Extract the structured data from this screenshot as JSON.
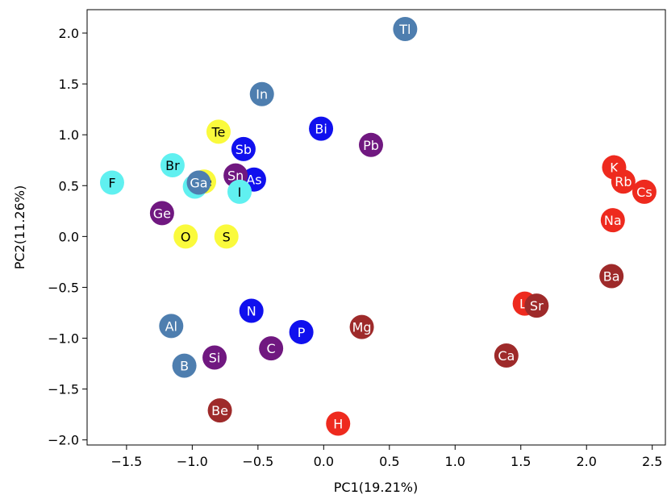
{
  "chart_data": {
    "type": "scatter",
    "title": "",
    "xlabel": "PC1(19.21%)",
    "ylabel": "PC2(11.26%)",
    "xlim": [
      -1.8,
      2.6
    ],
    "ylim": [
      -2.05,
      2.23
    ],
    "xticks": [
      -1.5,
      -1.0,
      -0.5,
      0.0,
      0.5,
      1.0,
      1.5,
      2.0,
      2.5
    ],
    "xtick_labels": [
      "−1.5",
      "−1.0",
      "−0.5",
      "0.0",
      "0.5",
      "1.0",
      "1.5",
      "2.0",
      "2.5"
    ],
    "yticks": [
      -2.0,
      -1.5,
      -1.0,
      -0.5,
      0.0,
      0.5,
      1.0,
      1.5,
      2.0
    ],
    "ytick_labels": [
      "−2.0",
      "−1.5",
      "−1.0",
      "−0.5",
      "0.0",
      "0.5",
      "1.0",
      "1.5",
      "2.0"
    ],
    "grid": false,
    "colors": {
      "steelblue": "#4E7EAF",
      "blue": "#1010EE",
      "purple": "#701880",
      "yellow": "#FAFA3C",
      "cyan": "#60F0F0",
      "red": "#EE2A1E",
      "brown": "#9E2A2A"
    },
    "points": [
      {
        "label": "Tl",
        "x": 0.62,
        "y": 2.04,
        "color": "steelblue"
      },
      {
        "label": "In",
        "x": -0.47,
        "y": 1.4,
        "color": "steelblue"
      },
      {
        "label": "Al",
        "x": -1.16,
        "y": -0.88,
        "color": "steelblue"
      },
      {
        "label": "B",
        "x": -1.06,
        "y": -1.27,
        "color": "steelblue"
      },
      {
        "label": "Bi",
        "x": -0.02,
        "y": 1.06,
        "color": "blue"
      },
      {
        "label": "Sb",
        "x": -0.61,
        "y": 0.86,
        "color": "blue"
      },
      {
        "label": "As",
        "x": -0.53,
        "y": 0.56,
        "color": "blue"
      },
      {
        "label": "N",
        "x": -0.55,
        "y": -0.73,
        "color": "blue"
      },
      {
        "label": "P",
        "x": -0.17,
        "y": -0.94,
        "color": "blue"
      },
      {
        "label": "Pb",
        "x": 0.36,
        "y": 0.9,
        "color": "purple"
      },
      {
        "label": "Sn",
        "x": -0.67,
        "y": 0.6,
        "color": "purple"
      },
      {
        "label": "Ge",
        "x": -1.23,
        "y": 0.23,
        "color": "purple"
      },
      {
        "label": "Si",
        "x": -0.83,
        "y": -1.19,
        "color": "purple"
      },
      {
        "label": "C",
        "x": -0.4,
        "y": -1.1,
        "color": "purple"
      },
      {
        "label": "Te",
        "x": -0.8,
        "y": 1.03,
        "color": "yellow"
      },
      {
        "label": "Se",
        "x": -0.91,
        "y": 0.54,
        "color": "yellow"
      },
      {
        "label": "O",
        "x": -1.05,
        "y": 0.0,
        "color": "yellow"
      },
      {
        "label": "S",
        "x": -0.74,
        "y": 0.0,
        "color": "yellow"
      },
      {
        "label": "F",
        "x": -1.61,
        "y": 0.53,
        "color": "cyan"
      },
      {
        "label": "Br",
        "x": -1.15,
        "y": 0.7,
        "color": "cyan"
      },
      {
        "label": "Cl",
        "x": -0.98,
        "y": 0.49,
        "color": "cyan"
      },
      {
        "label": "I",
        "x": -0.64,
        "y": 0.44,
        "color": "cyan"
      },
      {
        "label": "Ga",
        "x": -0.95,
        "y": 0.53,
        "color": "steelblue"
      },
      {
        "label": "K",
        "x": 2.21,
        "y": 0.68,
        "color": "red"
      },
      {
        "label": "Rb",
        "x": 2.28,
        "y": 0.54,
        "color": "red"
      },
      {
        "label": "Cs",
        "x": 2.44,
        "y": 0.44,
        "color": "red"
      },
      {
        "label": "Na",
        "x": 2.2,
        "y": 0.16,
        "color": "red"
      },
      {
        "label": "Li",
        "x": 1.53,
        "y": -0.66,
        "color": "red"
      },
      {
        "label": "H",
        "x": 0.11,
        "y": -1.84,
        "color": "red"
      },
      {
        "label": "Ba",
        "x": 2.19,
        "y": -0.39,
        "color": "brown"
      },
      {
        "label": "Sr",
        "x": 1.62,
        "y": -0.68,
        "color": "brown"
      },
      {
        "label": "Mg",
        "x": 0.29,
        "y": -0.89,
        "color": "brown"
      },
      {
        "label": "Ca",
        "x": 1.39,
        "y": -1.17,
        "color": "brown"
      },
      {
        "label": "Be",
        "x": -0.79,
        "y": -1.71,
        "color": "brown"
      }
    ]
  }
}
